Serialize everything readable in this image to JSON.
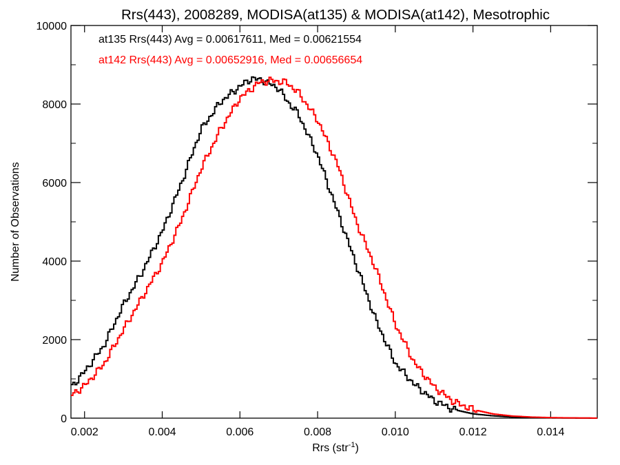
{
  "chart_data": {
    "type": "line",
    "step": true,
    "title": "Rrs(443), 2008289, MODISA(at135) & MODISA(at142), Mesotrophic",
    "xlabel": "Rrs (str",
    "xlabel_sup": "-1",
    "xlabel_end": ")",
    "ylabel": "Number of Observations",
    "xlim": [
      0.00165,
      0.0152
    ],
    "ylim": [
      0,
      10000
    ],
    "x_ticks": [
      0.002,
      0.004,
      0.006,
      0.008,
      0.01,
      0.012,
      0.014
    ],
    "x_tick_labels": [
      "0.002",
      "0.004",
      "0.006",
      "0.008",
      "0.010",
      "0.012",
      "0.014"
    ],
    "y_ticks": [
      0,
      2000,
      4000,
      6000,
      8000,
      10000
    ],
    "y_tick_labels": [
      "0",
      "2000",
      "4000",
      "6000",
      "8000",
      "10000"
    ],
    "grid": false,
    "annotations": [
      {
        "text": "at135 Rrs(443) Avg = 0.00617611, Med = 0.00621554",
        "color": "#000000"
      },
      {
        "text": "at142 Rrs(443) Avg = 0.00652916, Med = 0.00656654",
        "color": "#ff0000"
      }
    ],
    "series": [
      {
        "name": "at135",
        "color": "#000000",
        "points": [
          [
            0.00165,
            780
          ],
          [
            0.002,
            1180
          ],
          [
            0.0025,
            1850
          ],
          [
            0.003,
            2880
          ],
          [
            0.0035,
            3750
          ],
          [
            0.004,
            4750
          ],
          [
            0.0045,
            6000
          ],
          [
            0.005,
            7350
          ],
          [
            0.0055,
            8050
          ],
          [
            0.006,
            8450
          ],
          [
            0.0063,
            8650
          ],
          [
            0.0066,
            8600
          ],
          [
            0.007,
            8400
          ],
          [
            0.0072,
            8100
          ],
          [
            0.0075,
            7750
          ],
          [
            0.008,
            6700
          ],
          [
            0.0085,
            5300
          ],
          [
            0.009,
            3900
          ],
          [
            0.0095,
            2500
          ],
          [
            0.01,
            1400
          ],
          [
            0.0105,
            850
          ],
          [
            0.011,
            450
          ],
          [
            0.0115,
            220
          ],
          [
            0.012,
            110
          ],
          [
            0.0125,
            60
          ],
          [
            0.013,
            30
          ],
          [
            0.0135,
            15
          ],
          [
            0.014,
            8
          ],
          [
            0.0145,
            4
          ],
          [
            0.0152,
            0
          ]
        ]
      },
      {
        "name": "at142",
        "color": "#ff0000",
        "points": [
          [
            0.00165,
            580
          ],
          [
            0.002,
            820
          ],
          [
            0.0025,
            1380
          ],
          [
            0.003,
            2250
          ],
          [
            0.0035,
            3100
          ],
          [
            0.004,
            3950
          ],
          [
            0.0045,
            5050
          ],
          [
            0.005,
            6350
          ],
          [
            0.0055,
            7350
          ],
          [
            0.006,
            8150
          ],
          [
            0.0065,
            8550
          ],
          [
            0.0068,
            8600
          ],
          [
            0.0072,
            8550
          ],
          [
            0.0075,
            8300
          ],
          [
            0.008,
            7600
          ],
          [
            0.0085,
            6500
          ],
          [
            0.009,
            5000
          ],
          [
            0.0095,
            3800
          ],
          [
            0.01,
            2400
          ],
          [
            0.0105,
            1400
          ],
          [
            0.011,
            800
          ],
          [
            0.0115,
            420
          ],
          [
            0.012,
            220
          ],
          [
            0.0125,
            110
          ],
          [
            0.013,
            55
          ],
          [
            0.0135,
            28
          ],
          [
            0.014,
            14
          ],
          [
            0.0145,
            7
          ],
          [
            0.0152,
            2
          ]
        ]
      }
    ]
  }
}
